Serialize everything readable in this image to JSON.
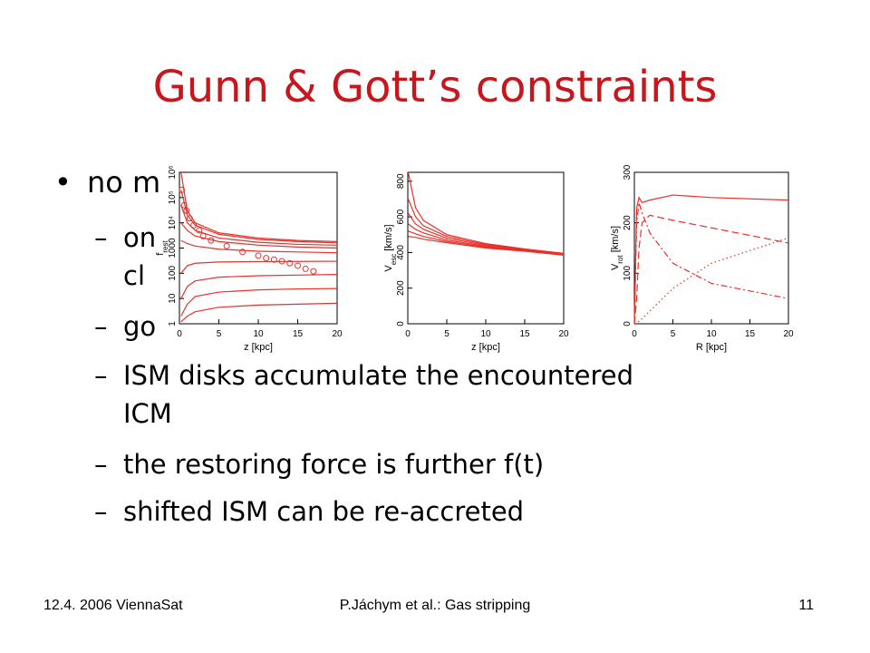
{
  "title": "Gunn & Gott’s constraints",
  "body": [
    {
      "marker": "•",
      "text": "no m",
      "level": 0
    },
    {
      "marker": "–",
      "text": "on",
      "level": 1
    },
    {
      "text": "cl",
      "level": 1
    },
    {
      "marker": "–",
      "text": "go",
      "level": 1
    },
    {
      "marker": "–",
      "text": "ISM disks accumulate the encountered",
      "level": 1
    },
    {
      "text": "ICM",
      "level": 1
    },
    {
      "marker": "–",
      "text": "the restoring force is further f(t)",
      "level": 1
    },
    {
      "marker": "–",
      "text": "shifted ISM can be re-accreted",
      "level": 1
    }
  ],
  "footer": {
    "left": "12.4. 2006 ViennaSat",
    "center": "P.Jáchym et al.: Gas stripping",
    "right": "11"
  },
  "chart_data": [
    {
      "type": "line",
      "xlabel": "z [kpc]",
      "ylabel": [
        "f",
        "rest"
      ],
      "ylog": true,
      "color": "#e8302a",
      "xlim": [
        0,
        20
      ],
      "xticks": [
        0,
        5,
        10,
        15,
        20
      ],
      "ylim": [
        1,
        1000000
      ],
      "yticks": [
        1,
        10,
        100,
        1000,
        {
          "value": 10000,
          "label": "10⁴"
        },
        {
          "value": 100000,
          "label": "10⁵"
        },
        {
          "value": 1000000,
          "label": "10⁶"
        }
      ],
      "x": [
        0.2,
        1,
        2,
        5,
        10,
        15,
        20
      ],
      "series": [
        {
          "values": [
            1000000,
            30000,
            10000,
            4000,
            2500,
            2000,
            1800
          ]
        },
        {
          "values": [
            200000,
            20000,
            8000,
            3500,
            2200,
            1800,
            1600
          ]
        },
        {
          "values": [
            50000,
            10000,
            5000,
            2500,
            1700,
            1400,
            1300
          ]
        },
        {
          "values": [
            10000,
            5000,
            3000,
            1800,
            1300,
            1100,
            1000
          ]
        },
        {
          "values": [
            2000,
            1500,
            1200,
            900,
            750,
            700,
            650
          ]
        },
        {
          "values": [
            100,
            200,
            250,
            280,
            290,
            295,
            300
          ]
        },
        {
          "values": [
            10,
            30,
            50,
            70,
            80,
            85,
            90
          ]
        },
        {
          "values": [
            2,
            6,
            12,
            18,
            22,
            24,
            25
          ]
        },
        {
          "values": [
            1.2,
            2,
            3,
            4.5,
            5.5,
            6,
            6.5
          ]
        },
        {
          "style": "markers",
          "x": [
            0.3,
            0.6,
            0.9,
            1.3,
            1.8,
            2.5,
            3,
            4,
            6,
            8,
            10,
            11,
            12,
            13,
            14,
            15,
            16,
            17
          ],
          "values": [
            200000,
            50000,
            30000,
            15000,
            8000,
            5000,
            3000,
            2000,
            1200,
            700,
            500,
            400,
            350,
            300,
            250,
            200,
            150,
            120
          ]
        }
      ]
    },
    {
      "type": "line",
      "xlabel": "z [kpc]",
      "ylabel": [
        "V",
        "esc",
        " [km/s]"
      ],
      "color": "#e8302a",
      "xlim": [
        0,
        20
      ],
      "xticks": [
        0,
        5,
        10,
        15,
        20
      ],
      "ylim": [
        0,
        850
      ],
      "yticks": [
        0,
        200,
        400,
        600,
        800
      ],
      "x": [
        0.05,
        1,
        2,
        5,
        10,
        15,
        20
      ],
      "series": [
        {
          "values": [
            850,
            650,
            580,
            500,
            450,
            420,
            395
          ]
        },
        {
          "values": [
            700,
            600,
            550,
            490,
            445,
            418,
            393
          ]
        },
        {
          "values": [
            620,
            560,
            530,
            480,
            440,
            415,
            391
          ]
        },
        {
          "values": [
            560,
            530,
            510,
            470,
            435,
            412,
            389
          ]
        },
        {
          "values": [
            520,
            505,
            490,
            462,
            430,
            410,
            387
          ]
        },
        {
          "values": [
            490,
            485,
            475,
            455,
            425,
            407,
            385
          ]
        }
      ]
    },
    {
      "type": "line",
      "xlabel": "R [kpc]",
      "ylabel": [
        "V",
        "rot",
        " [km/s]"
      ],
      "color": "#e8302a",
      "xlim": [
        0,
        20
      ],
      "xticks": [
        0,
        5,
        10,
        15,
        20
      ],
      "ylim": [
        0,
        300
      ],
      "yticks": [
        0,
        100,
        200,
        300
      ],
      "x": [
        0,
        0.3,
        0.6,
        1,
        2,
        5,
        10,
        20
      ],
      "series": [
        {
          "dash": "solid",
          "values": [
            0,
            230,
            250,
            240,
            245,
            255,
            250,
            245
          ]
        },
        {
          "dash": "dashed",
          "values": [
            0,
            50,
            150,
            200,
            215,
            205,
            190,
            160
          ]
        },
        {
          "dash": "dashdot",
          "values": [
            0,
            200,
            240,
            220,
            180,
            120,
            80,
            50
          ]
        },
        {
          "dash": "dotted",
          "values": [
            0,
            2,
            5,
            10,
            25,
            70,
            120,
            170
          ]
        }
      ]
    }
  ]
}
